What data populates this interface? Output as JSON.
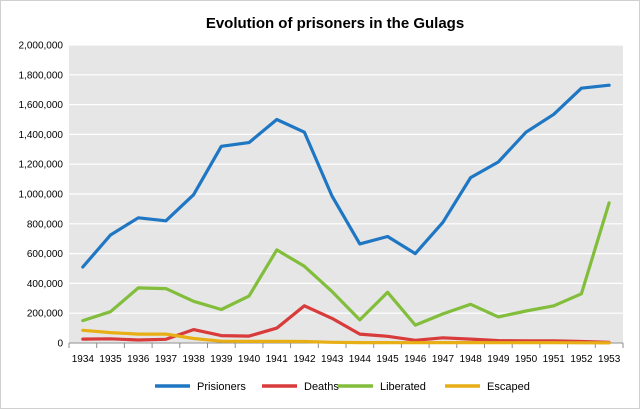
{
  "chart_data": {
    "type": "line",
    "title": "Evolution of prisoners in the Gulags",
    "xlabel": "",
    "ylabel": "",
    "ylim": [
      0,
      2000000
    ],
    "yticks": [
      0,
      200000,
      400000,
      600000,
      800000,
      1000000,
      1200000,
      1400000,
      1600000,
      1800000,
      2000000
    ],
    "ytick_labels": [
      "0",
      "200,000",
      "400,000",
      "600,000",
      "800,000",
      "1,000,000",
      "1,200,000",
      "1,400,000",
      "1,600,000",
      "1,800,000",
      "2,000,000"
    ],
    "categories": [
      "1934",
      "1935",
      "1936",
      "1937",
      "1938",
      "1939",
      "1940",
      "1941",
      "1942",
      "1943",
      "1944",
      "1945",
      "1946",
      "1947",
      "1948",
      "1949",
      "1950",
      "1951",
      "1952",
      "1953"
    ],
    "grid": "horizontal",
    "legend_position": "bottom",
    "series": [
      {
        "name": "Prisioners",
        "color": "#1f77c4",
        "values": [
          510000,
          725000,
          840000,
          820000,
          995000,
          1320000,
          1345000,
          1500000,
          1415000,
          985000,
          665000,
          715000,
          600000,
          810000,
          1110000,
          1215000,
          1415000,
          1535000,
          1710000,
          1730000
        ]
      },
      {
        "name": "Deaths",
        "color": "#d93a3a",
        "values": [
          26000,
          28000,
          20000,
          25000,
          90000,
          50000,
          46000,
          100000,
          250000,
          165000,
          60000,
          45000,
          18000,
          35000,
          26000,
          16000,
          14000,
          15000,
          10000,
          5000
        ]
      },
      {
        "name": "Liberated",
        "color": "#82be3c",
        "values": [
          150000,
          210000,
          370000,
          365000,
          280000,
          225000,
          315000,
          625000,
          515000,
          345000,
          155000,
          340000,
          120000,
          195000,
          260000,
          175000,
          215000,
          250000,
          330000,
          940000
        ]
      },
      {
        "name": "Escaped",
        "color": "#e8ae15",
        "values": [
          85000,
          70000,
          60000,
          60000,
          30000,
          12000,
          11000,
          11000,
          10000,
          5000,
          3000,
          2500,
          2000,
          3000,
          3000,
          2000,
          2000,
          2000,
          1500,
          1000
        ]
      }
    ]
  }
}
